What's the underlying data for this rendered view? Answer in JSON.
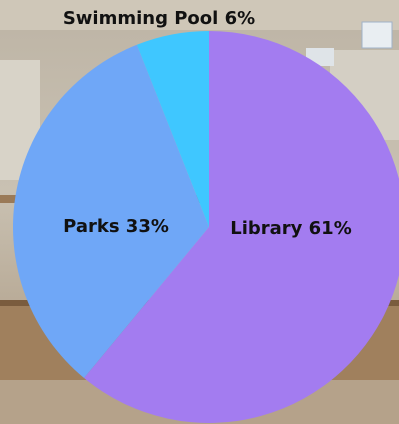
{
  "chart_data": {
    "type": "pie",
    "slices": [
      {
        "label": "Library 61%",
        "value": 61,
        "color": "#a37cf0"
      },
      {
        "label": "Parks 33%",
        "value": 33,
        "color": "#6fa7f7"
      },
      {
        "label": "Swimming Pool 6%",
        "value": 6,
        "color": "#3fc7ff"
      }
    ],
    "legend": "none"
  }
}
